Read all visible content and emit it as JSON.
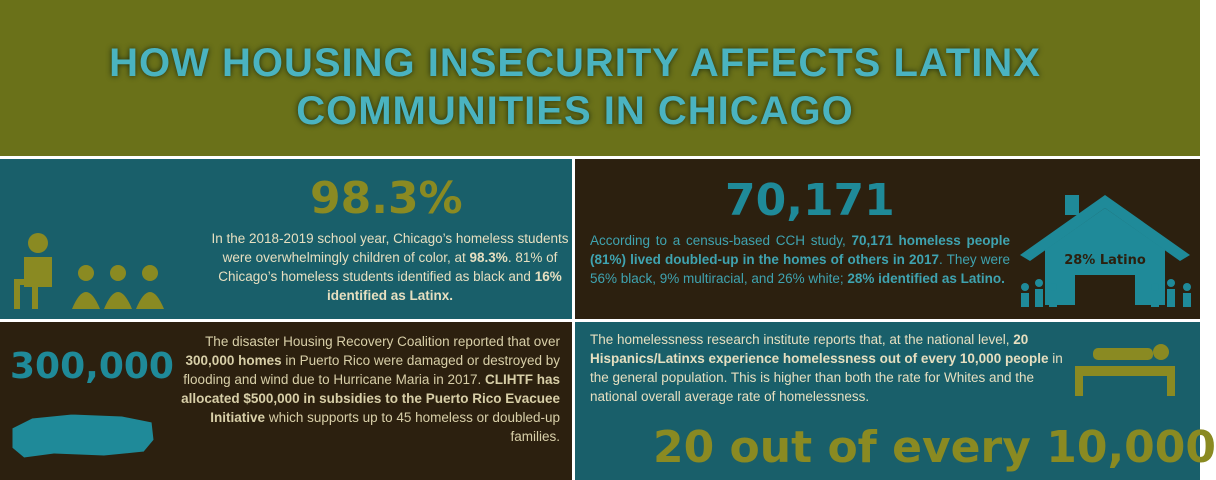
{
  "header": {
    "title": [
      "HOW HOUSING INSECURITY AFFECTS LATINX",
      "COMMUNITIES IN CHICAGO"
    ]
  },
  "panels": [
    {
      "stat": "98.3%",
      "text": [
        "In the 2018-2019 school year, Chicago’s homeless students were overwhelmingly children of color, at ",
        "98.3%",
        ". 81% of Chicago’s homeless students identified as black and ",
        "16% identified as Latinx."
      ]
    },
    {
      "stat": "70,171",
      "icon_label": "28% Latino",
      "text": [
        "According to a census-based CCH study, ",
        "70,171 homeless people (81%) lived doubled-up in the homes of others in 2017",
        ". They were 56% black, 9% multiracial, and 26% white; ",
        "28% identified as Latino."
      ]
    },
    {
      "stat": "300,000",
      "text": [
        "The disaster Housing Recovery Coalition reported that over ",
        "300,000 homes",
        " in Puerto Rico were damaged or destroyed by flooding and wind due to Hurricane Maria in 2017. ",
        "CLIHTF has allocated $500,000 in subsidies to the Puerto Rico Evacuee Initiative",
        " which supports up to 45 homeless or doubled-up families."
      ]
    },
    {
      "stat": "20 out of every 10,000",
      "text": [
        "The homelessness research institute reports that, at the national level, ",
        "20 Hispanics/Latinxs experience homelessness out of every 10,000 people",
        " in the general population. This is higher than both the rate for Whites and the national overall average rate of homelessness."
      ]
    }
  ]
}
